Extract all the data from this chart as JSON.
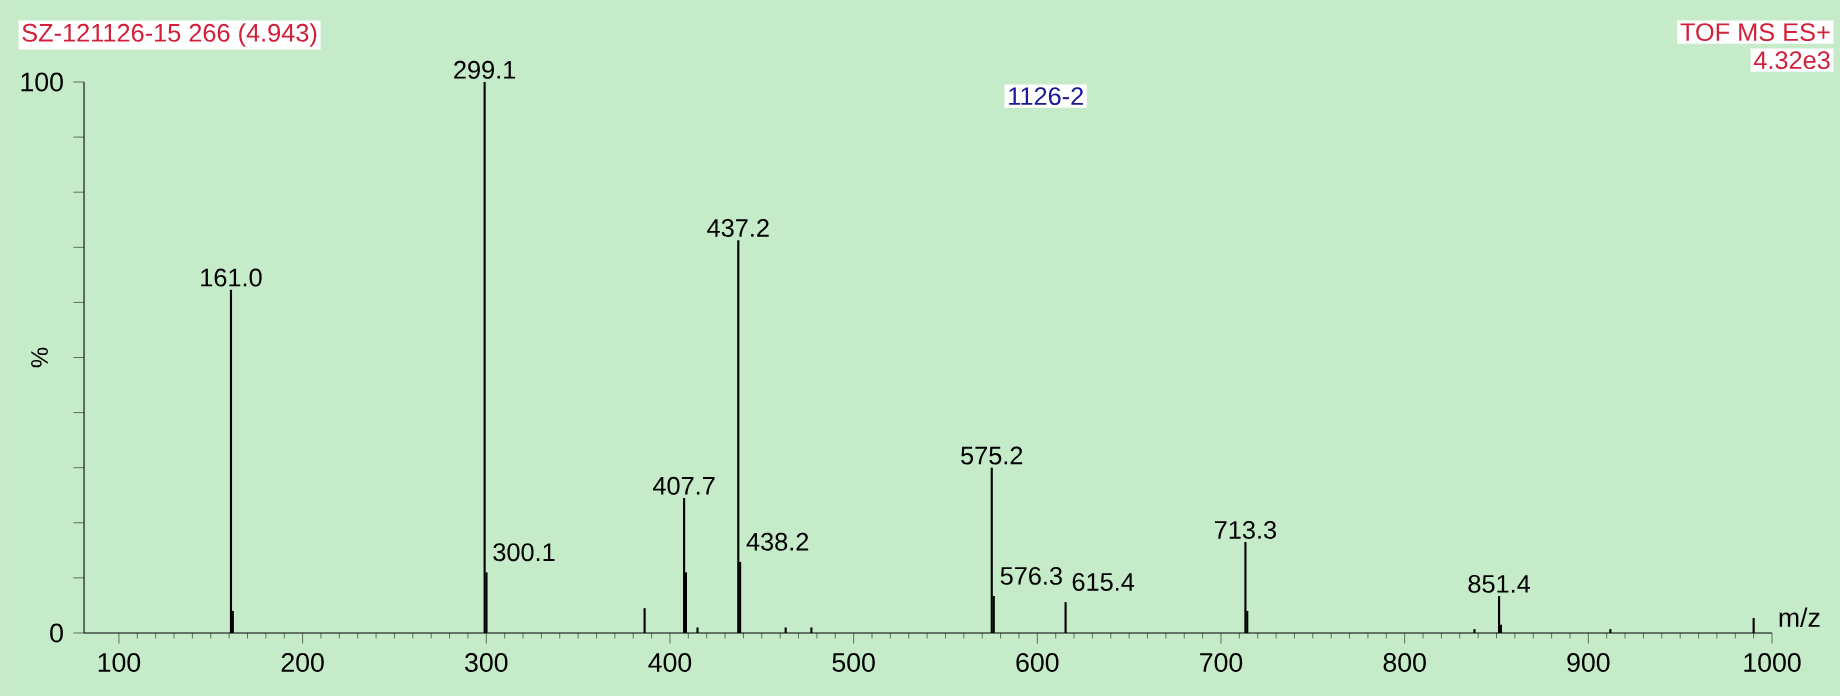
{
  "chart_data": {
    "type": "bar",
    "title": "SZ-121126-15 266 (4.943)",
    "subtitle": "1126-2",
    "xlabel": "m/z",
    "ylabel": "%",
    "annotations": [
      "TOF MS ES+",
      "4.32e3",
      {
        "text": "161.0",
        "x": 161.0,
        "y": 62.3
      },
      {
        "text": "299.1",
        "x": 299.1,
        "y": 100
      },
      {
        "text": "300.1",
        "x": 300.1,
        "y": 11
      },
      {
        "text": "407.7",
        "x": 407.7,
        "y": 24.5
      },
      {
        "text": "437.2",
        "x": 437.2,
        "y": 71.3
      },
      {
        "text": "438.2",
        "x": 438.2,
        "y": 12.9
      },
      {
        "text": "575.2",
        "x": 575.2,
        "y": 30
      },
      {
        "text": "576.3",
        "x": 576.3,
        "y": 6.7
      },
      {
        "text": "615.4",
        "x": 615.4,
        "y": 5.6
      },
      {
        "text": "713.3",
        "x": 713.3,
        "y": 16.5
      },
      {
        "text": "851.4",
        "x": 851.4,
        "y": 6.7
      }
    ],
    "x": [
      161.0,
      162.0,
      299.1,
      300.1,
      386.2,
      407.7,
      408.7,
      415,
      437.2,
      438.2,
      463,
      477,
      575.2,
      576.3,
      615.4,
      713.3,
      714.3,
      838,
      851.4,
      852.4,
      912,
      990
    ],
    "values": [
      62.3,
      4,
      100,
      11,
      4.5,
      24.5,
      11,
      1,
      71.3,
      12.9,
      1,
      1,
      30,
      6.7,
      5.6,
      16.5,
      4,
      0.7,
      6.7,
      1.5,
      0.7,
      2.7
    ],
    "color": "#000000",
    "xlim": [
      81,
      1000
    ],
    "ylim": [
      0,
      100
    ],
    "xticks": [
      100,
      200,
      300,
      400,
      500,
      600,
      700,
      800,
      900,
      1000
    ],
    "yticks": [
      0,
      {
        "value": 10,
        "label": null
      },
      {
        "value": 20,
        "label": null
      },
      {
        "value": 30,
        "label": null
      },
      {
        "value": 40,
        "label": null
      },
      {
        "value": 50,
        "label": null
      },
      {
        "value": 60,
        "label": null
      },
      {
        "value": 70,
        "label": null
      },
      {
        "value": 80,
        "label": null
      },
      {
        "value": 90,
        "label": null
      },
      100
    ]
  }
}
